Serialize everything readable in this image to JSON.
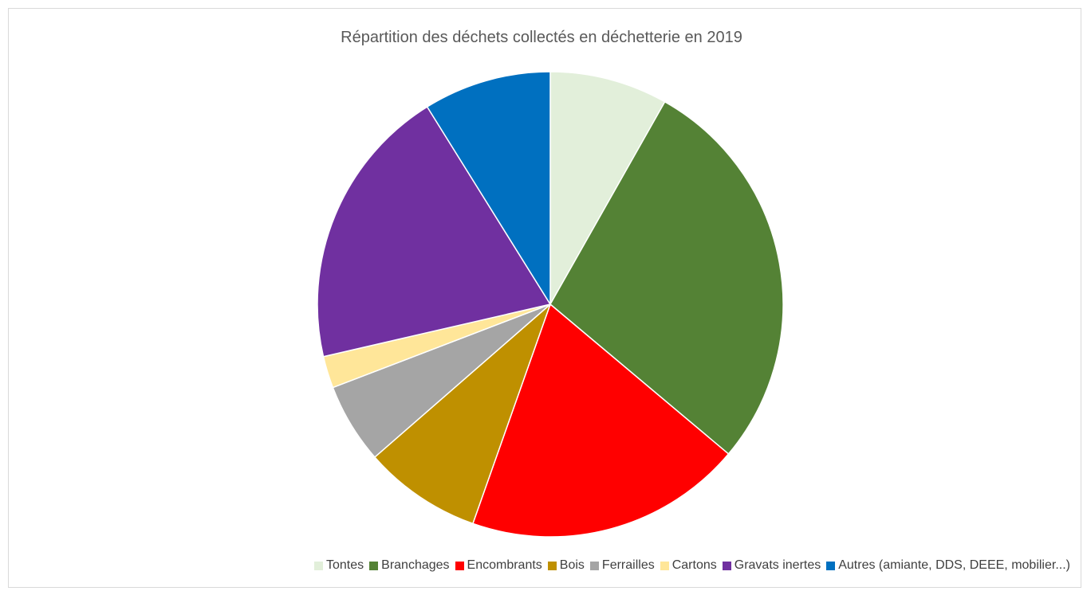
{
  "chart_data": {
    "type": "pie",
    "title": "Répartition des déchets collectés en déchetterie en 2019",
    "legend_position": "bottom",
    "categories": [
      "Tontes",
      "Branchages",
      "Encombrants",
      "Bois",
      "Ferrailles",
      "Cartons",
      "Gravats inertes",
      "Autres (amiante, DDS, DEEE, mobilier...)"
    ],
    "values": [
      8.5,
      29.0,
      20.0,
      8.5,
      5.8,
      2.3,
      20.5,
      9.2
    ],
    "unit": "%",
    "colors": [
      "#e2efda",
      "#548235",
      "#ff0000",
      "#bf9000",
      "#a5a5a5",
      "#ffe699",
      "#7030a0",
      "#0070c0"
    ]
  }
}
